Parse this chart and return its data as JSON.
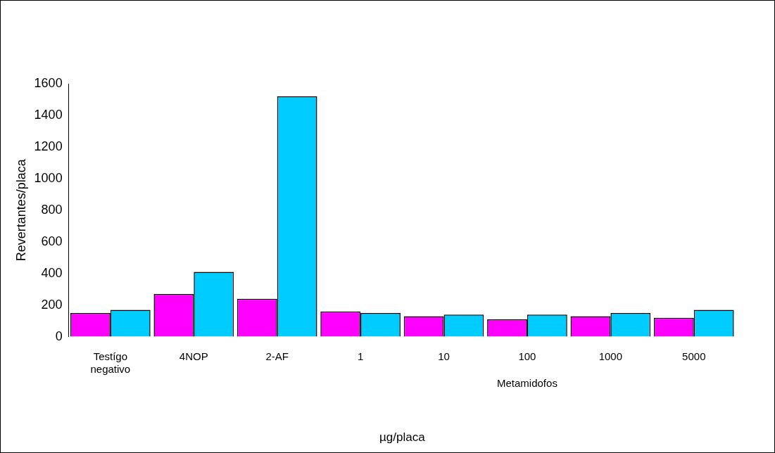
{
  "chart_data": {
    "type": "bar",
    "categories": [
      "Testígo negativo",
      "4NOP",
      "2-AF",
      "1",
      "10",
      "100",
      "1000",
      "5000"
    ],
    "series": [
      {
        "color": "#ff00ff",
        "values": [
          150,
          270,
          240,
          160,
          130,
          110,
          130,
          120
        ]
      },
      {
        "color": "#00ccff",
        "values": [
          170,
          410,
          1520,
          150,
          140,
          140,
          150,
          170
        ]
      }
    ],
    "ylabel": "Revertantes/placa",
    "xlabel": "µg/placa",
    "annotations": [
      "Metamidofos"
    ],
    "ylim": [
      0,
      1600
    ],
    "yticks": [
      0,
      200,
      400,
      600,
      800,
      1000,
      1200,
      1400,
      1600
    ],
    "grid": false,
    "legend": false
  }
}
